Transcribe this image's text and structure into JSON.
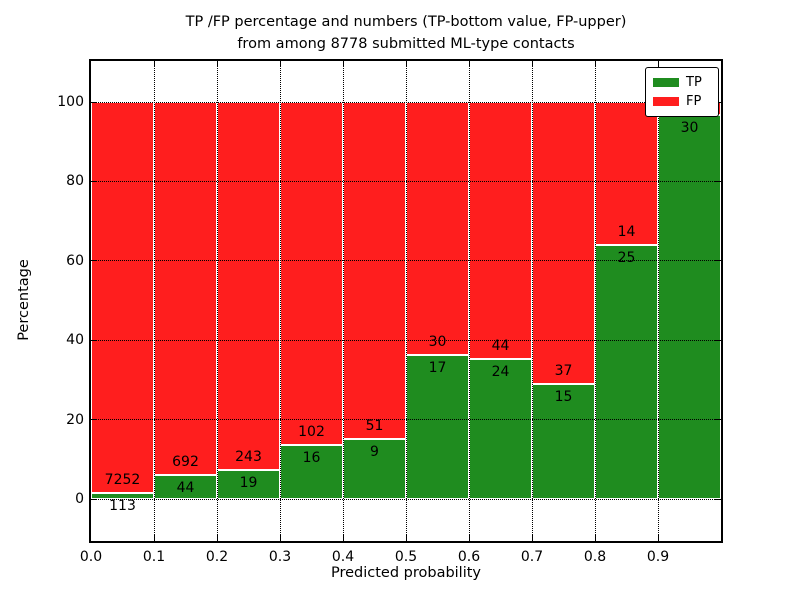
{
  "chart_data": {
    "type": "bar",
    "stacked": true,
    "percentage_scale": true,
    "title_line1": "TP /FP percentage and numbers (TP-bottom value, FP-upper)",
    "title_line2": "from among 8778 submitted ML-type contacts",
    "xlabel": "Predicted probability",
    "ylabel": "Percentage",
    "x_ticks": [
      "0.0",
      "0.1",
      "0.2",
      "0.3",
      "0.4",
      "0.5",
      "0.6",
      "0.7",
      "0.8",
      "0.9"
    ],
    "y_ticks": [
      0,
      20,
      40,
      60,
      80,
      100
    ],
    "y_tick_labels": [
      "0",
      "20",
      "40",
      "60",
      "80",
      "100"
    ],
    "xlim": [
      0.0,
      1.0
    ],
    "ylim": [
      -11,
      110
    ],
    "grid": "dotted black",
    "colors": {
      "tp": "#1F8C1F",
      "fp": "#FF1E1E"
    },
    "legend": {
      "position": "upper right",
      "entries": [
        {
          "label": "TP",
          "color": "#1F8C1F"
        },
        {
          "label": "FP",
          "color": "#FF1E1E"
        }
      ]
    },
    "bins": [
      {
        "range_start": "0.0",
        "tp": 113,
        "fp": 7252,
        "tp_pct": 1.53,
        "fp_label": "7252",
        "tp_label": "113"
      },
      {
        "range_start": "0.1",
        "tp": 44,
        "fp": 692,
        "tp_pct": 5.98,
        "fp_label": "692",
        "tp_label": "44"
      },
      {
        "range_start": "0.2",
        "tp": 19,
        "fp": 243,
        "tp_pct": 7.25,
        "fp_label": "243",
        "tp_label": "19"
      },
      {
        "range_start": "0.3",
        "tp": 16,
        "fp": 102,
        "tp_pct": 13.56,
        "fp_label": "102",
        "tp_label": "16"
      },
      {
        "range_start": "0.4",
        "tp": 9,
        "fp": 51,
        "tp_pct": 15.0,
        "fp_label": "51",
        "tp_label": "9"
      },
      {
        "range_start": "0.5",
        "tp": 17,
        "fp": 30,
        "tp_pct": 36.17,
        "fp_label": "30",
        "tp_label": "17"
      },
      {
        "range_start": "0.6",
        "tp": 24,
        "fp": 44,
        "tp_pct": 35.29,
        "fp_label": "44",
        "tp_label": "24"
      },
      {
        "range_start": "0.7",
        "tp": 15,
        "fp": 37,
        "tp_pct": 28.85,
        "fp_label": "37",
        "tp_label": "15"
      },
      {
        "range_start": "0.8",
        "tp": 25,
        "fp": 14,
        "tp_pct": 64.1,
        "fp_label": "14",
        "tp_label": "25"
      },
      {
        "range_start": "0.9",
        "tp": 30,
        "tp_pct": 96.8,
        "fp_label": "",
        "tp_label": "30"
      }
    ]
  }
}
